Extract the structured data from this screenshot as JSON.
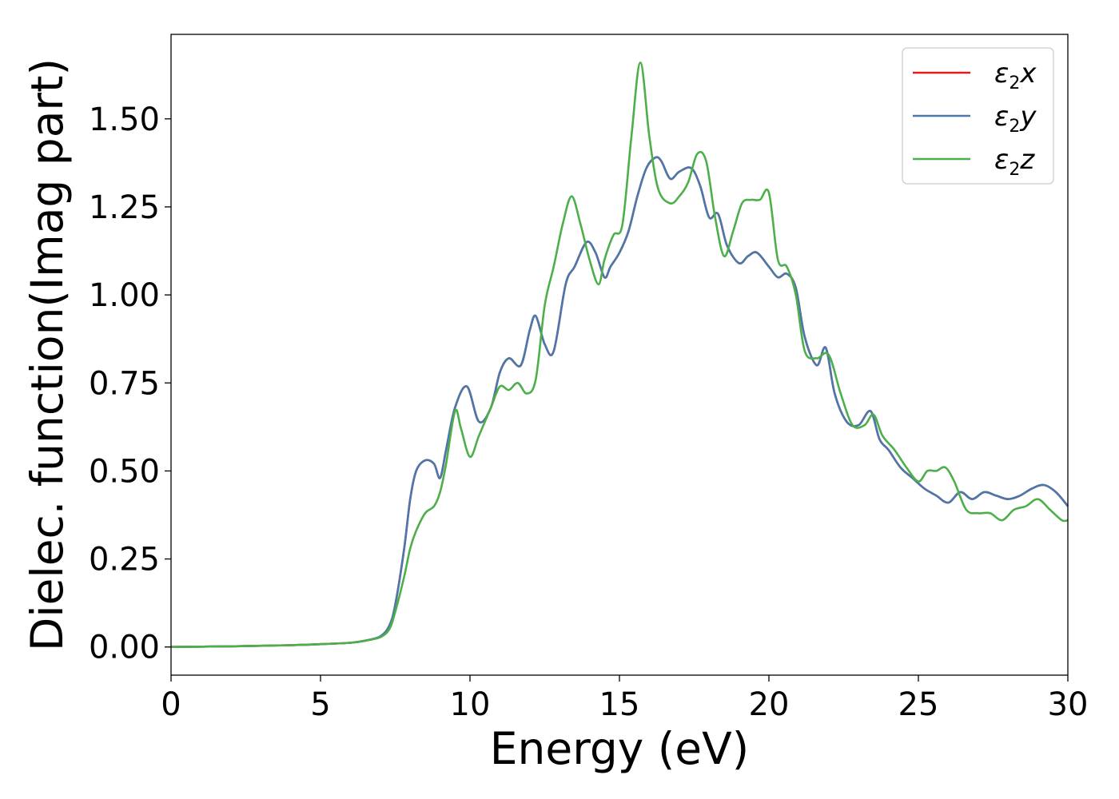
{
  "chart_data": {
    "type": "line",
    "xlabel": "Energy (eV)",
    "ylabel": "Dielec. function(Imag part)",
    "xlim": [
      0,
      30
    ],
    "ylim": [
      -0.08,
      1.74
    ],
    "xticks": [
      0,
      5,
      10,
      15,
      20,
      25,
      30
    ],
    "xtick_labels": [
      "0",
      "5",
      "10",
      "15",
      "20",
      "25",
      "30"
    ],
    "yticks": [
      0.0,
      0.25,
      0.5,
      0.75,
      1.0,
      1.25,
      1.5
    ],
    "ytick_labels": [
      "0.00",
      "0.25",
      "0.50",
      "0.75",
      "1.00",
      "1.25",
      "1.50"
    ],
    "grid": false,
    "legend_position": "top-right",
    "series": [
      {
        "name": "ε2x",
        "legend_base": "ε",
        "legend_sub": "2",
        "legend_suffix": "x",
        "color": "#e41a1c",
        "x": [
          0,
          2,
          4,
          5,
          6,
          6.5,
          7,
          7.3,
          7.5,
          7.8,
          8.0,
          8.2,
          8.5,
          8.8,
          9.0,
          9.2,
          9.5,
          9.9,
          10.3,
          10.7,
          11.0,
          11.3,
          11.7,
          12.0,
          12.2,
          12.5,
          12.8,
          13.2,
          13.5,
          13.9,
          14.2,
          14.5,
          14.7,
          15.0,
          15.3,
          15.6,
          15.9,
          16.2,
          16.4,
          16.7,
          17.0,
          17.4,
          17.7,
          18.0,
          18.3,
          18.6,
          19.0,
          19.3,
          19.6,
          20.0,
          20.3,
          20.6,
          20.9,
          21.2,
          21.6,
          21.9,
          22.2,
          22.6,
          23.0,
          23.4,
          23.7,
          24.0,
          24.4,
          24.8,
          25.2,
          25.6,
          26.0,
          26.4,
          26.8,
          27.2,
          27.6,
          28.0,
          28.4,
          28.8,
          29.2,
          29.6,
          30.0
        ],
        "y": [
          0.0,
          0.002,
          0.005,
          0.008,
          0.012,
          0.018,
          0.03,
          0.06,
          0.12,
          0.28,
          0.42,
          0.5,
          0.53,
          0.52,
          0.48,
          0.56,
          0.68,
          0.74,
          0.64,
          0.68,
          0.78,
          0.82,
          0.8,
          0.9,
          0.94,
          0.86,
          0.84,
          1.03,
          1.08,
          1.15,
          1.12,
          1.05,
          1.08,
          1.12,
          1.18,
          1.28,
          1.36,
          1.39,
          1.38,
          1.33,
          1.35,
          1.36,
          1.31,
          1.22,
          1.23,
          1.14,
          1.09,
          1.11,
          1.12,
          1.08,
          1.05,
          1.06,
          1.02,
          0.88,
          0.8,
          0.85,
          0.72,
          0.64,
          0.63,
          0.67,
          0.59,
          0.56,
          0.51,
          0.48,
          0.45,
          0.43,
          0.41,
          0.44,
          0.42,
          0.44,
          0.43,
          0.42,
          0.43,
          0.45,
          0.46,
          0.44,
          0.4
        ]
      },
      {
        "name": "ε2y",
        "legend_base": "ε",
        "legend_sub": "2",
        "legend_suffix": "y",
        "color": "#4a78ad",
        "x": [
          0,
          2,
          4,
          5,
          6,
          6.5,
          7,
          7.3,
          7.5,
          7.8,
          8.0,
          8.2,
          8.5,
          8.8,
          9.0,
          9.2,
          9.5,
          9.9,
          10.3,
          10.7,
          11.0,
          11.3,
          11.7,
          12.0,
          12.2,
          12.5,
          12.8,
          13.2,
          13.5,
          13.9,
          14.2,
          14.5,
          14.7,
          15.0,
          15.3,
          15.6,
          15.9,
          16.2,
          16.4,
          16.7,
          17.0,
          17.4,
          17.7,
          18.0,
          18.3,
          18.6,
          19.0,
          19.3,
          19.6,
          20.0,
          20.3,
          20.6,
          20.9,
          21.2,
          21.6,
          21.9,
          22.2,
          22.6,
          23.0,
          23.4,
          23.7,
          24.0,
          24.4,
          24.8,
          25.2,
          25.6,
          26.0,
          26.4,
          26.8,
          27.2,
          27.6,
          28.0,
          28.4,
          28.8,
          29.2,
          29.6,
          30.0
        ],
        "y": [
          0.0,
          0.002,
          0.005,
          0.008,
          0.012,
          0.018,
          0.03,
          0.06,
          0.12,
          0.28,
          0.42,
          0.5,
          0.53,
          0.52,
          0.48,
          0.56,
          0.68,
          0.74,
          0.64,
          0.68,
          0.78,
          0.82,
          0.8,
          0.9,
          0.94,
          0.86,
          0.84,
          1.03,
          1.08,
          1.15,
          1.12,
          1.05,
          1.08,
          1.12,
          1.18,
          1.28,
          1.36,
          1.39,
          1.38,
          1.33,
          1.35,
          1.36,
          1.31,
          1.22,
          1.23,
          1.14,
          1.09,
          1.11,
          1.12,
          1.08,
          1.05,
          1.06,
          1.02,
          0.88,
          0.8,
          0.85,
          0.72,
          0.64,
          0.63,
          0.67,
          0.59,
          0.56,
          0.51,
          0.48,
          0.45,
          0.43,
          0.41,
          0.44,
          0.42,
          0.44,
          0.43,
          0.42,
          0.43,
          0.45,
          0.46,
          0.44,
          0.4
        ]
      },
      {
        "name": "ε2z",
        "legend_base": "ε",
        "legend_sub": "2",
        "legend_suffix": "z",
        "color": "#4daf4a",
        "x": [
          0,
          2,
          4,
          5,
          6,
          6.5,
          7,
          7.3,
          7.5,
          7.8,
          8.0,
          8.2,
          8.5,
          8.8,
          9.0,
          9.2,
          9.5,
          9.7,
          10.0,
          10.3,
          10.7,
          11.0,
          11.3,
          11.6,
          11.9,
          12.2,
          12.5,
          12.8,
          13.1,
          13.4,
          13.7,
          14.0,
          14.3,
          14.5,
          14.8,
          15.1,
          15.4,
          15.7,
          16.0,
          16.3,
          16.7,
          17.0,
          17.3,
          17.6,
          17.9,
          18.2,
          18.5,
          18.8,
          19.1,
          19.4,
          19.7,
          20.0,
          20.3,
          20.6,
          20.9,
          21.2,
          21.6,
          22.0,
          22.4,
          22.8,
          23.2,
          23.5,
          23.8,
          24.2,
          24.6,
          25.0,
          25.3,
          25.6,
          25.9,
          26.2,
          26.6,
          27.0,
          27.4,
          27.8,
          28.2,
          28.6,
          29.0,
          29.4,
          29.8,
          30.0
        ],
        "y": [
          0.0,
          0.002,
          0.005,
          0.008,
          0.012,
          0.018,
          0.028,
          0.05,
          0.1,
          0.2,
          0.28,
          0.33,
          0.38,
          0.4,
          0.44,
          0.52,
          0.67,
          0.62,
          0.54,
          0.6,
          0.68,
          0.74,
          0.73,
          0.75,
          0.72,
          0.76,
          0.97,
          1.08,
          1.2,
          1.28,
          1.2,
          1.1,
          1.03,
          1.1,
          1.17,
          1.2,
          1.45,
          1.66,
          1.45,
          1.3,
          1.26,
          1.28,
          1.32,
          1.4,
          1.38,
          1.22,
          1.11,
          1.18,
          1.26,
          1.27,
          1.27,
          1.29,
          1.1,
          1.08,
          1.0,
          0.84,
          0.82,
          0.83,
          0.72,
          0.63,
          0.63,
          0.66,
          0.6,
          0.56,
          0.51,
          0.47,
          0.5,
          0.5,
          0.51,
          0.47,
          0.39,
          0.38,
          0.38,
          0.36,
          0.39,
          0.4,
          0.42,
          0.39,
          0.36,
          0.36
        ]
      }
    ]
  }
}
